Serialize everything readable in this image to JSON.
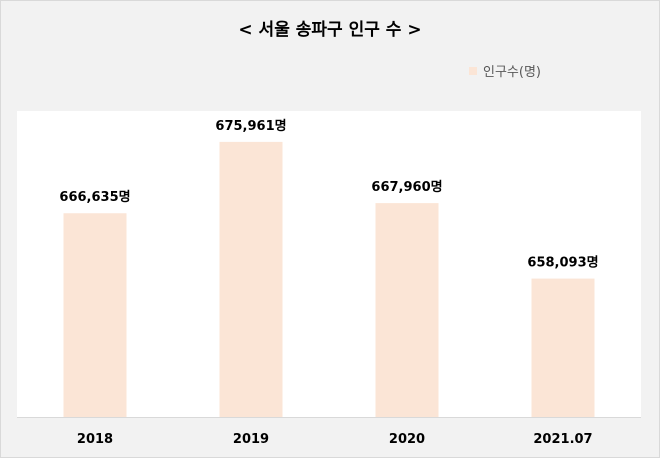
{
  "title": "< 서울 송파구 인구 수 >",
  "legend": {
    "label": "인구수(명)"
  },
  "colors": {
    "bar": "#fbe5d6",
    "plot_bg": "#ffffff",
    "frame_bg": "#f2f2f2",
    "axis": "#d9d9d9",
    "text": "#000000"
  },
  "chart_data": {
    "type": "bar",
    "title": "< 서울 송파구 인구 수 >",
    "categories": [
      "2018",
      "2019",
      "2020",
      "2021.07"
    ],
    "series": [
      {
        "name": "인구수(명)",
        "values": [
          666635,
          675961,
          667960,
          658093
        ]
      }
    ],
    "data_labels": [
      "666,635명",
      "675,961명",
      "667,960명",
      "658,093명"
    ],
    "ylim": [
      640000,
      680000
    ],
    "grid": false,
    "legend_position": "top-right"
  }
}
